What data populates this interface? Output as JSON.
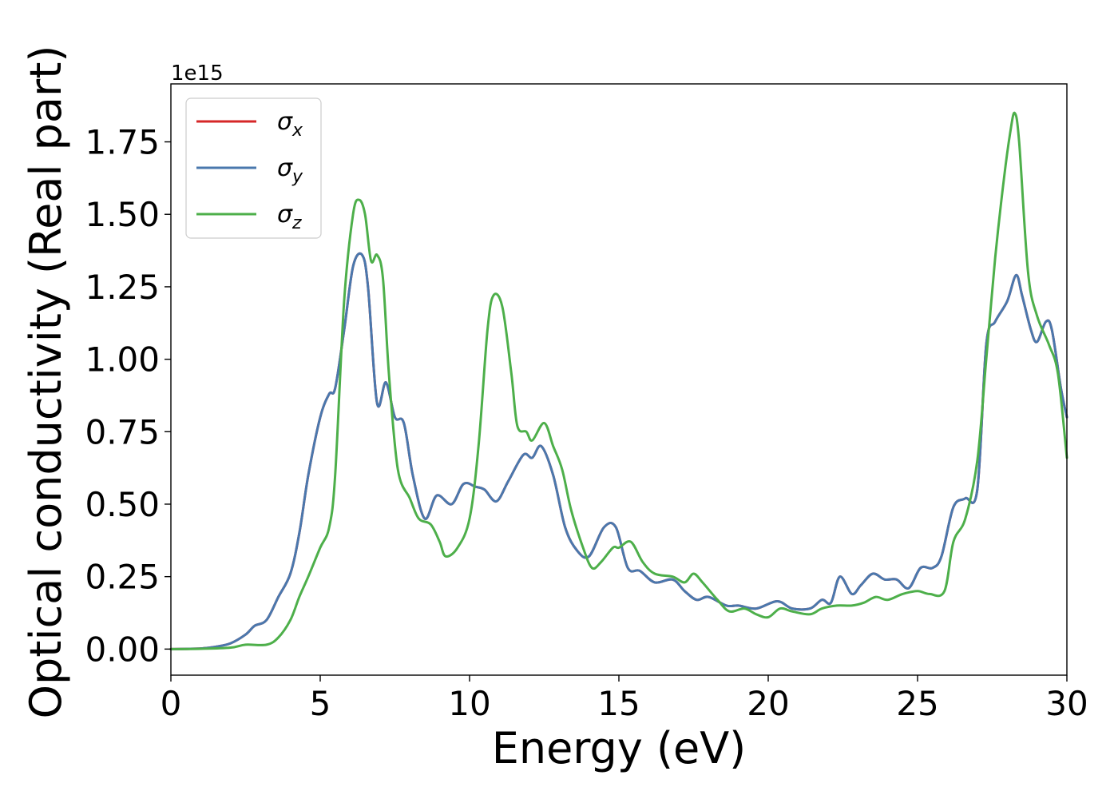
{
  "chart_data": {
    "type": "line",
    "title": "",
    "xlabel": "Energy (eV)",
    "ylabel": "Optical conductivity (Real part)",
    "y_offset_label": "1e15",
    "xlim": [
      0,
      30
    ],
    "ylim": [
      -0.09,
      1.95
    ],
    "x_ticks": [
      0,
      5,
      10,
      15,
      20,
      25,
      30
    ],
    "x_tick_labels": [
      "0",
      "5",
      "10",
      "15",
      "20",
      "25",
      "30"
    ],
    "y_ticks": [
      0.0,
      0.25,
      0.5,
      0.75,
      1.0,
      1.25,
      1.5,
      1.75
    ],
    "y_tick_labels": [
      "0.00",
      "0.25",
      "0.50",
      "0.75",
      "1.00",
      "1.25",
      "1.50",
      "1.75"
    ],
    "grid": false,
    "legend_position": "top-left",
    "series": [
      {
        "name": "σx",
        "legend_base": "σ",
        "legend_sub": "x",
        "color": "#d62728",
        "points": [
          [
            0,
            0
          ],
          [
            1,
            0.002
          ],
          [
            1.5,
            0.008
          ],
          [
            2,
            0.02
          ],
          [
            2.5,
            0.05
          ],
          [
            2.8,
            0.08
          ],
          [
            3.2,
            0.1
          ],
          [
            3.6,
            0.18
          ],
          [
            4,
            0.26
          ],
          [
            4.3,
            0.4
          ],
          [
            4.6,
            0.6
          ],
          [
            5,
            0.8
          ],
          [
            5.3,
            0.88
          ],
          [
            5.5,
            0.9
          ],
          [
            5.8,
            1.1
          ],
          [
            6.1,
            1.32
          ],
          [
            6.4,
            1.36
          ],
          [
            6.6,
            1.25
          ],
          [
            6.9,
            0.85
          ],
          [
            7.2,
            0.92
          ],
          [
            7.5,
            0.8
          ],
          [
            7.8,
            0.78
          ],
          [
            8.1,
            0.6
          ],
          [
            8.5,
            0.45
          ],
          [
            8.9,
            0.53
          ],
          [
            9.4,
            0.5
          ],
          [
            9.8,
            0.57
          ],
          [
            10.2,
            0.56
          ],
          [
            10.5,
            0.55
          ],
          [
            10.9,
            0.51
          ],
          [
            11.3,
            0.58
          ],
          [
            11.8,
            0.67
          ],
          [
            12.1,
            0.66
          ],
          [
            12.4,
            0.7
          ],
          [
            12.8,
            0.6
          ],
          [
            13.2,
            0.42
          ],
          [
            13.6,
            0.34
          ],
          [
            14,
            0.32
          ],
          [
            14.5,
            0.42
          ],
          [
            14.9,
            0.42
          ],
          [
            15.3,
            0.28
          ],
          [
            15.7,
            0.27
          ],
          [
            16.2,
            0.23
          ],
          [
            16.8,
            0.24
          ],
          [
            17.2,
            0.2
          ],
          [
            17.6,
            0.17
          ],
          [
            18,
            0.18
          ],
          [
            18.6,
            0.15
          ],
          [
            19,
            0.15
          ],
          [
            19.6,
            0.14
          ],
          [
            20.3,
            0.165
          ],
          [
            20.8,
            0.14
          ],
          [
            21.4,
            0.14
          ],
          [
            21.8,
            0.17
          ],
          [
            22.1,
            0.16
          ],
          [
            22.4,
            0.25
          ],
          [
            22.8,
            0.19
          ],
          [
            23.1,
            0.22
          ],
          [
            23.5,
            0.26
          ],
          [
            23.9,
            0.24
          ],
          [
            24.3,
            0.24
          ],
          [
            24.7,
            0.21
          ],
          [
            25.1,
            0.28
          ],
          [
            25.5,
            0.28
          ],
          [
            25.8,
            0.32
          ],
          [
            26.2,
            0.49
          ],
          [
            26.6,
            0.52
          ],
          [
            27,
            0.55
          ],
          [
            27.3,
            1.05
          ],
          [
            27.6,
            1.13
          ],
          [
            28,
            1.2
          ],
          [
            28.3,
            1.29
          ],
          [
            28.5,
            1.22
          ],
          [
            28.8,
            1.1
          ],
          [
            29,
            1.06
          ],
          [
            29.3,
            1.13
          ],
          [
            29.5,
            1.1
          ],
          [
            29.8,
            0.9
          ],
          [
            30,
            0.8
          ]
        ]
      },
      {
        "name": "σy",
        "legend_base": "σ",
        "legend_sub": "y",
        "color": "#4a78ad",
        "points": [
          [
            0,
            0
          ],
          [
            1,
            0.002
          ],
          [
            1.5,
            0.008
          ],
          [
            2,
            0.02
          ],
          [
            2.5,
            0.05
          ],
          [
            2.8,
            0.08
          ],
          [
            3.2,
            0.1
          ],
          [
            3.6,
            0.18
          ],
          [
            4,
            0.26
          ],
          [
            4.3,
            0.4
          ],
          [
            4.6,
            0.6
          ],
          [
            5,
            0.8
          ],
          [
            5.3,
            0.88
          ],
          [
            5.5,
            0.9
          ],
          [
            5.8,
            1.1
          ],
          [
            6.1,
            1.32
          ],
          [
            6.4,
            1.36
          ],
          [
            6.6,
            1.25
          ],
          [
            6.9,
            0.85
          ],
          [
            7.2,
            0.92
          ],
          [
            7.5,
            0.8
          ],
          [
            7.8,
            0.78
          ],
          [
            8.1,
            0.6
          ],
          [
            8.5,
            0.45
          ],
          [
            8.9,
            0.53
          ],
          [
            9.4,
            0.5
          ],
          [
            9.8,
            0.57
          ],
          [
            10.2,
            0.56
          ],
          [
            10.5,
            0.55
          ],
          [
            10.9,
            0.51
          ],
          [
            11.3,
            0.58
          ],
          [
            11.8,
            0.67
          ],
          [
            12.1,
            0.66
          ],
          [
            12.4,
            0.7
          ],
          [
            12.8,
            0.6
          ],
          [
            13.2,
            0.42
          ],
          [
            13.6,
            0.34
          ],
          [
            14,
            0.32
          ],
          [
            14.5,
            0.42
          ],
          [
            14.9,
            0.42
          ],
          [
            15.3,
            0.28
          ],
          [
            15.7,
            0.27
          ],
          [
            16.2,
            0.23
          ],
          [
            16.8,
            0.24
          ],
          [
            17.2,
            0.2
          ],
          [
            17.6,
            0.17
          ],
          [
            18,
            0.18
          ],
          [
            18.6,
            0.15
          ],
          [
            19,
            0.15
          ],
          [
            19.6,
            0.14
          ],
          [
            20.3,
            0.165
          ],
          [
            20.8,
            0.14
          ],
          [
            21.4,
            0.14
          ],
          [
            21.8,
            0.17
          ],
          [
            22.1,
            0.16
          ],
          [
            22.4,
            0.25
          ],
          [
            22.8,
            0.19
          ],
          [
            23.1,
            0.22
          ],
          [
            23.5,
            0.26
          ],
          [
            23.9,
            0.24
          ],
          [
            24.3,
            0.24
          ],
          [
            24.7,
            0.21
          ],
          [
            25.1,
            0.28
          ],
          [
            25.5,
            0.28
          ],
          [
            25.8,
            0.32
          ],
          [
            26.2,
            0.49
          ],
          [
            26.6,
            0.52
          ],
          [
            27,
            0.55
          ],
          [
            27.3,
            1.05
          ],
          [
            27.6,
            1.13
          ],
          [
            28,
            1.2
          ],
          [
            28.3,
            1.29
          ],
          [
            28.5,
            1.22
          ],
          [
            28.8,
            1.1
          ],
          [
            29,
            1.06
          ],
          [
            29.3,
            1.13
          ],
          [
            29.5,
            1.1
          ],
          [
            29.8,
            0.9
          ],
          [
            30,
            0.8
          ]
        ]
      },
      {
        "name": "σz",
        "legend_base": "σ",
        "legend_sub": "z",
        "color": "#4daf4a",
        "points": [
          [
            0,
            0
          ],
          [
            1,
            0.001
          ],
          [
            2,
            0.005
          ],
          [
            2.5,
            0.015
          ],
          [
            3.2,
            0.015
          ],
          [
            3.6,
            0.04
          ],
          [
            4,
            0.1
          ],
          [
            4.3,
            0.18
          ],
          [
            4.6,
            0.25
          ],
          [
            5,
            0.35
          ],
          [
            5.3,
            0.42
          ],
          [
            5.5,
            0.6
          ],
          [
            5.8,
            1.2
          ],
          [
            6.1,
            1.5
          ],
          [
            6.3,
            1.55
          ],
          [
            6.5,
            1.5
          ],
          [
            6.7,
            1.34
          ],
          [
            6.9,
            1.36
          ],
          [
            7.1,
            1.28
          ],
          [
            7.3,
            0.95
          ],
          [
            7.6,
            0.62
          ],
          [
            8,
            0.52
          ],
          [
            8.3,
            0.45
          ],
          [
            8.7,
            0.43
          ],
          [
            9,
            0.37
          ],
          [
            9.2,
            0.32
          ],
          [
            9.6,
            0.35
          ],
          [
            10,
            0.45
          ],
          [
            10.3,
            0.7
          ],
          [
            10.6,
            1.1
          ],
          [
            10.8,
            1.22
          ],
          [
            11.1,
            1.18
          ],
          [
            11.4,
            0.95
          ],
          [
            11.6,
            0.77
          ],
          [
            11.9,
            0.75
          ],
          [
            12.1,
            0.72
          ],
          [
            12.5,
            0.78
          ],
          [
            12.8,
            0.7
          ],
          [
            13.1,
            0.62
          ],
          [
            13.4,
            0.48
          ],
          [
            13.8,
            0.35
          ],
          [
            14.1,
            0.28
          ],
          [
            14.4,
            0.3
          ],
          [
            14.8,
            0.35
          ],
          [
            15,
            0.35
          ],
          [
            15.4,
            0.37
          ],
          [
            15.8,
            0.3
          ],
          [
            16.2,
            0.26
          ],
          [
            16.8,
            0.25
          ],
          [
            17.2,
            0.23
          ],
          [
            17.5,
            0.26
          ],
          [
            17.8,
            0.23
          ],
          [
            18.3,
            0.17
          ],
          [
            18.7,
            0.13
          ],
          [
            19.2,
            0.14
          ],
          [
            19.6,
            0.12
          ],
          [
            20,
            0.11
          ],
          [
            20.4,
            0.14
          ],
          [
            20.8,
            0.13
          ],
          [
            21.4,
            0.12
          ],
          [
            21.8,
            0.14
          ],
          [
            22.3,
            0.15
          ],
          [
            22.8,
            0.15
          ],
          [
            23.2,
            0.16
          ],
          [
            23.6,
            0.18
          ],
          [
            24,
            0.17
          ],
          [
            24.5,
            0.19
          ],
          [
            25,
            0.2
          ],
          [
            25.4,
            0.19
          ],
          [
            25.9,
            0.2
          ],
          [
            26.2,
            0.37
          ],
          [
            26.6,
            0.45
          ],
          [
            27,
            0.65
          ],
          [
            27.3,
            1.0
          ],
          [
            27.6,
            1.35
          ],
          [
            27.9,
            1.63
          ],
          [
            28.1,
            1.78
          ],
          [
            28.25,
            1.85
          ],
          [
            28.4,
            1.75
          ],
          [
            28.7,
            1.3
          ],
          [
            29,
            1.15
          ],
          [
            29.4,
            1.05
          ],
          [
            29.7,
            0.95
          ],
          [
            30,
            0.66
          ]
        ]
      }
    ]
  }
}
